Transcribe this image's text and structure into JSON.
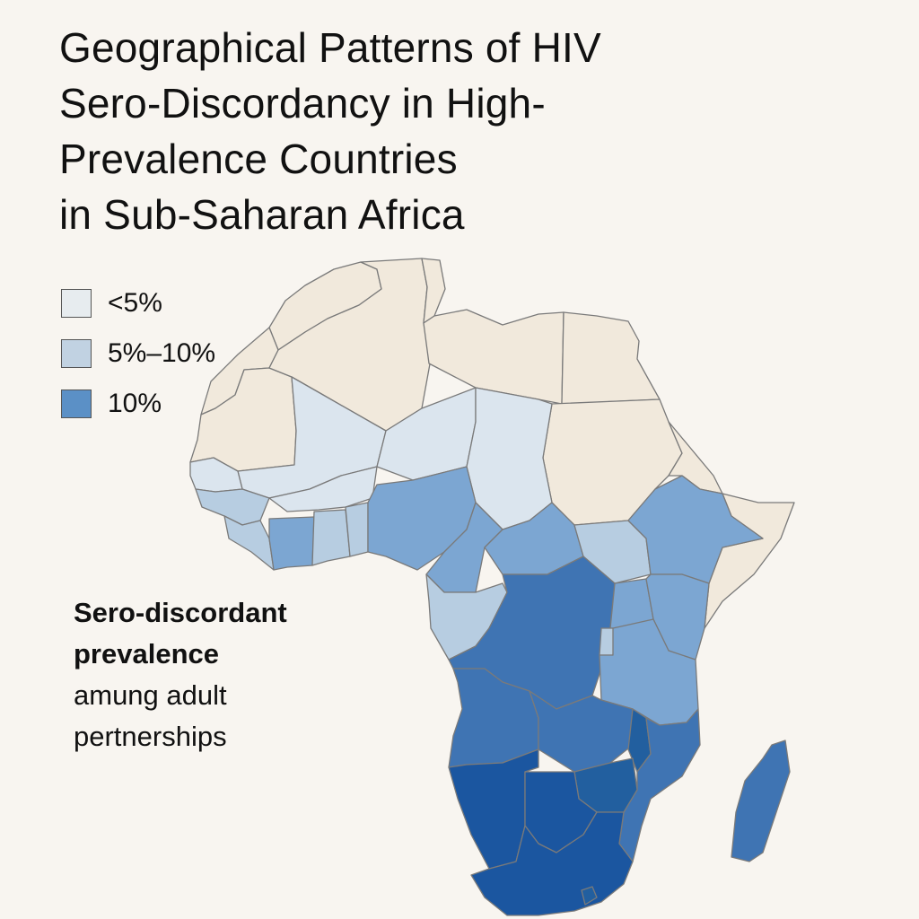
{
  "title_lines": [
    "Geographical Patterns of HIV",
    "Sero-Discordancy in High-",
    "Prevalence Countries",
    "in Sub-Saharan Africa"
  ],
  "legend": [
    {
      "label": "<5%",
      "color": "#e7ecef"
    },
    {
      "label": "5%–10%",
      "color": "#c1d2e2"
    },
    {
      "label": "10%",
      "color": "#5b90c6"
    }
  ],
  "caption": {
    "heading_lines": [
      "Sero-discordant",
      "prevalence"
    ],
    "sub_lines": [
      "amung adult",
      "pertnerships"
    ]
  },
  "colors": {
    "no_data": "#f1e9dc",
    "lightest": "#dbe5ee",
    "light": "#b7cde1",
    "medium": "#7ca6d2",
    "dark": "#3f74b3",
    "darker": "#225f9f",
    "darkest": "#1b56a0"
  }
}
